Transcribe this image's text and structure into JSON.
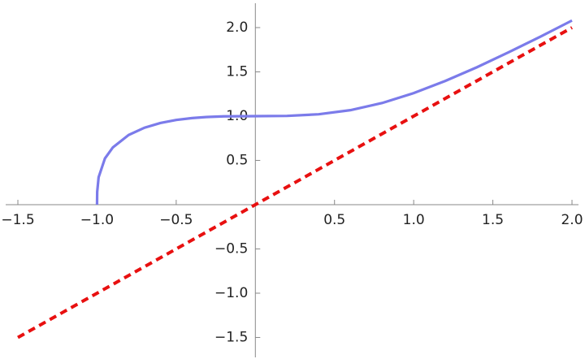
{
  "chart_data": {
    "type": "line",
    "xlim": [
      -1.577,
      2.041
    ],
    "ylim": [
      -1.725,
      2.275
    ],
    "xticks": [
      {
        "value": -1.5,
        "label": "−1.5"
      },
      {
        "value": -1.0,
        "label": "−1.0"
      },
      {
        "value": -0.5,
        "label": "−0.5"
      },
      0.5,
      {
        "value": 1.0,
        "label": "1.0"
      },
      1.5,
      {
        "value": 2.0,
        "label": "2.0"
      }
    ],
    "yticks": [
      {
        "value": -1.5,
        "label": "−1.5"
      },
      {
        "value": -1.0,
        "label": "−1.0"
      },
      {
        "value": -0.5,
        "label": "−0.5"
      },
      0.5,
      {
        "value": 1.0,
        "label": "1.0"
      },
      1.5,
      {
        "value": 2.0,
        "label": "2.0"
      }
    ],
    "series": [
      {
        "color": "#7b7bea",
        "dashed": false,
        "x": [
          -1,
          -0.999,
          -0.99,
          -0.95,
          -0.9,
          -0.8,
          -0.7,
          -0.6,
          -0.5,
          -0.4,
          -0.3,
          -0.2,
          0,
          0.2,
          0.4,
          0.6,
          0.8,
          1.0,
          1.2,
          1.4,
          1.6,
          1.8,
          2.0
        ],
        "values": [
          0,
          0.1442,
          0.3097,
          0.5224,
          0.6471,
          0.7874,
          0.8693,
          0.9221,
          0.9565,
          0.9782,
          0.9909,
          0.9973,
          1,
          1.0027,
          1.0209,
          1.0673,
          1.1478,
          1.2599,
          1.3977,
          1.5527,
          1.7213,
          1.8974,
          2.0801
        ]
      },
      {
        "color": "#e81010",
        "dashed": true,
        "x": [
          -1.5,
          2.0
        ],
        "values": [
          -1.5,
          2.0
        ]
      }
    ]
  }
}
